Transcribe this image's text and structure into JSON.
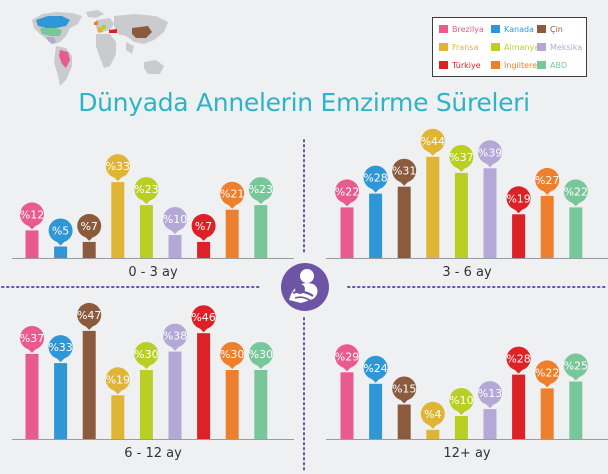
{
  "title": "Dünyada Annelerin Emzirme Süreleri",
  "colors": {
    "Brezilya": "#e95b8c",
    "Kanada": "#2f97d6",
    "Çin": "#8b5b3d",
    "Fransa": "#e0b535",
    "Almanya": "#bacf24",
    "Meksika": "#b4a9d6",
    "Türkiye": "#dd2127",
    "İngiltere": "#ee7f2d",
    "ABD": "#78c79a"
  },
  "legend": [
    {
      "name": "Brezilya",
      "color": "#e95b8c"
    },
    {
      "name": "Kanada",
      "color": "#2f97d6"
    },
    {
      "name": "Çin",
      "color": "#8b5b3d"
    },
    {
      "name": "Fransa",
      "color": "#e0b535"
    },
    {
      "name": "Almanya",
      "color": "#bacf24"
    },
    {
      "name": "Meksika",
      "color": "#b4a9d6"
    },
    {
      "name": "Türkiye",
      "color": "#dd2127"
    },
    {
      "name": "İngiltere",
      "color": "#ee7f2d"
    },
    {
      "name": "ABD",
      "color": "#78c79a"
    }
  ],
  "icon": "breastfeeding-mother-icon",
  "chart_data": [
    {
      "type": "bar",
      "title": "0 - 3 ay",
      "categories": [
        "Brezilya",
        "Kanada",
        "Çin",
        "Fransa",
        "Almanya",
        "Meksika",
        "Türkiye",
        "İngiltere",
        "ABD"
      ],
      "values": [
        12,
        5,
        7,
        33,
        23,
        10,
        7,
        21,
        23
      ],
      "value_prefix": "%"
    },
    {
      "type": "bar",
      "title": "3 - 6 ay",
      "categories": [
        "Brezilya",
        "Kanada",
        "Çin",
        "Fransa",
        "Almanya",
        "Meksika",
        "Türkiye",
        "İngiltere",
        "ABD"
      ],
      "values": [
        22,
        28,
        31,
        44,
        37,
        39,
        19,
        27,
        22
      ],
      "value_prefix": "%"
    },
    {
      "type": "bar",
      "title": "6 - 12 ay",
      "categories": [
        "Brezilya",
        "Kanada",
        "Çin",
        "Fransa",
        "Almanya",
        "Meksika",
        "Türkiye",
        "İngiltere",
        "ABD"
      ],
      "values": [
        37,
        33,
        47,
        19,
        30,
        38,
        46,
        30,
        30
      ],
      "value_prefix": "%"
    },
    {
      "type": "bar",
      "title": "12+ ay",
      "categories": [
        "Brezilya",
        "Kanada",
        "Çin",
        "Fransa",
        "Almanya",
        "Meksika",
        "Türkiye",
        "İngiltere",
        "ABD"
      ],
      "values": [
        29,
        24,
        15,
        4,
        10,
        13,
        28,
        22,
        25
      ],
      "value_prefix": "%"
    }
  ]
}
